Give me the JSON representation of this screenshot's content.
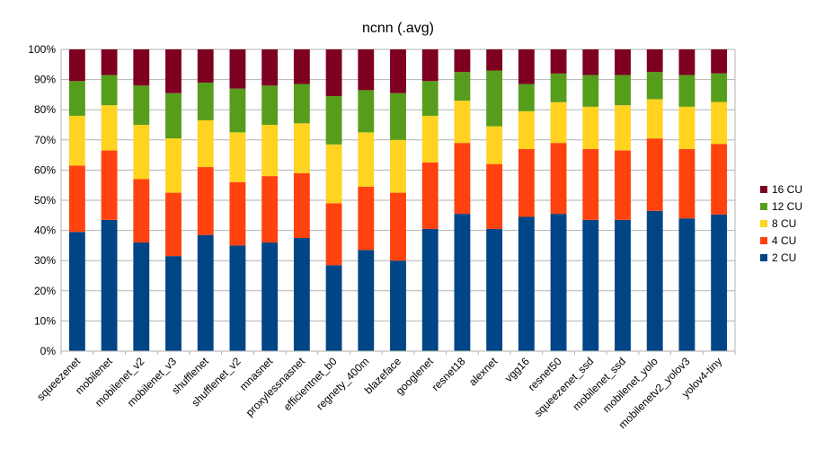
{
  "chart_data": {
    "type": "bar",
    "stacked": true,
    "percent": true,
    "title": "ncnn (.avg)",
    "xlabel": "",
    "ylabel": "",
    "ylim": [
      0,
      100
    ],
    "yticks": [
      "0%",
      "10%",
      "20%",
      "30%",
      "40%",
      "50%",
      "60%",
      "70%",
      "80%",
      "90%",
      "100%"
    ],
    "grid": true,
    "legend_position": "right",
    "categories": [
      "squeezenet",
      "mobilenet",
      "mobilenet_v2",
      "mobilenet_v3",
      "shufflenet",
      "shufflenet_v2",
      "mnasnet",
      "proxylessnasnet",
      "efficientnet_b0",
      "regnety_400m",
      "blazeface",
      "googlenet",
      "resnet18",
      "alexnet",
      "vgg16",
      "resnet50",
      "squeezenet_ssd",
      "mobilenet_ssd",
      "mobilenet_yolo",
      "mobilenetv2_yolov3",
      "yolov4-tiny"
    ],
    "series": [
      {
        "name": "2 CU",
        "color": "#004586",
        "values": [
          39.5,
          43.5,
          36,
          31.5,
          38.5,
          35,
          36,
          37.5,
          28.5,
          33.5,
          30,
          40.5,
          45.5,
          40.5,
          44.5,
          45.5,
          43.5,
          43.5,
          46.5,
          44,
          45.5
        ]
      },
      {
        "name": "4 CU",
        "color": "#ff420e",
        "values": [
          22,
          23,
          21,
          21,
          22.5,
          21,
          22,
          21.5,
          20.5,
          21,
          22.5,
          22,
          23.5,
          21.5,
          22.5,
          23.5,
          23.5,
          23,
          24,
          23,
          23.5
        ]
      },
      {
        "name": "8 CU",
        "color": "#ffd320",
        "values": [
          16.5,
          15,
          18,
          18,
          15.5,
          16.5,
          17,
          16.5,
          19.5,
          18,
          17.5,
          15.5,
          14,
          12.5,
          12.5,
          13.5,
          14,
          15,
          13,
          14,
          14
        ]
      },
      {
        "name": "12 CU",
        "color": "#579d1c",
        "values": [
          11.5,
          10,
          13,
          15,
          12.5,
          14.5,
          13,
          13,
          16,
          14,
          15.5,
          11.5,
          9.5,
          18.5,
          9,
          9.5,
          10.5,
          10,
          9,
          10.5,
          9.5
        ]
      },
      {
        "name": "16 CU",
        "color": "#7e0021",
        "values": [
          10.5,
          8.5,
          12,
          14.5,
          11,
          13,
          12,
          11.5,
          15.5,
          13.5,
          14.5,
          10.5,
          7.5,
          7,
          11.5,
          8,
          8.5,
          8.5,
          7.5,
          8.5,
          8
        ]
      }
    ],
    "legend_order": [
      "16 CU",
      "12 CU",
      "8 CU",
      "4 CU",
      "2 CU"
    ]
  }
}
